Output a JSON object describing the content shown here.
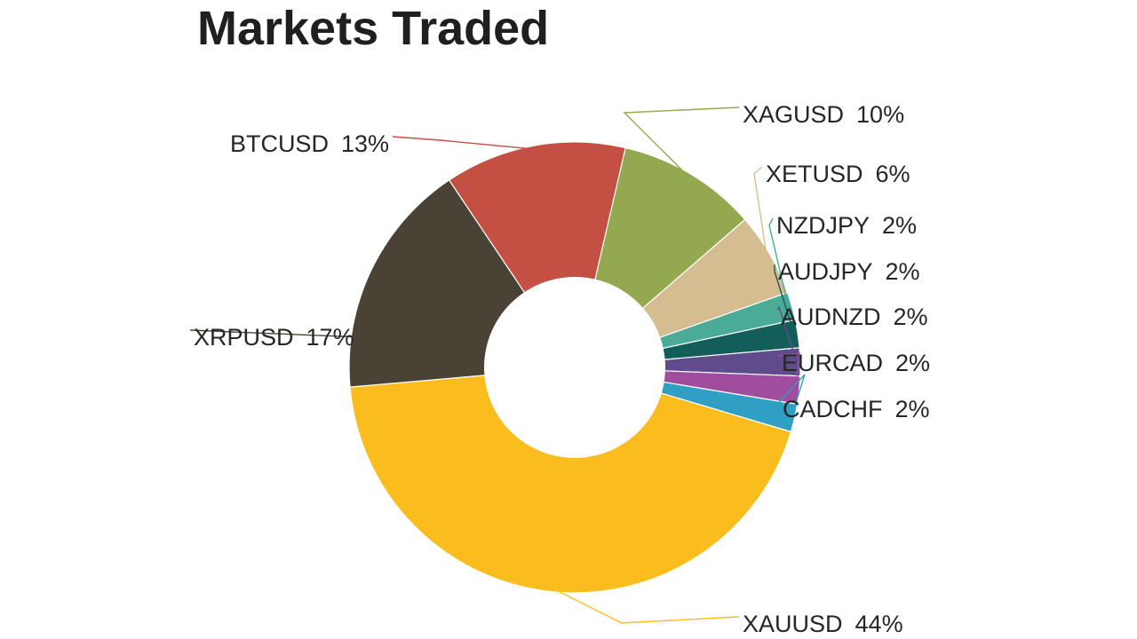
{
  "chart_data": {
    "type": "pie",
    "title": "Markets Traded",
    "donut": true,
    "slices": [
      {
        "label": "XAGUSD",
        "pct_text": "10%",
        "value": 10,
        "color": "#93a84f"
      },
      {
        "label": "XETUSD",
        "pct_text": "6%",
        "value": 6,
        "color": "#d6bc91"
      },
      {
        "label": "NZDJPY",
        "pct_text": "2%",
        "value": 2,
        "color": "#4aab97"
      },
      {
        "label": "AUDJPY",
        "pct_text": "2%",
        "value": 2,
        "color": "#135e5b"
      },
      {
        "label": "AUDNZD",
        "pct_text": "2%",
        "value": 2,
        "color": "#5e4c8c"
      },
      {
        "label": "EURCAD",
        "pct_text": "2%",
        "value": 2,
        "color": "#a14d9f"
      },
      {
        "label": "CADCHF",
        "pct_text": "2%",
        "value": 2,
        "color": "#2f9fc4"
      },
      {
        "label": "XAUUSD",
        "pct_text": "44%",
        "value": 44,
        "color": "#fbbd1e"
      },
      {
        "label": "XRPUSD",
        "pct_text": "17%",
        "value": 17,
        "color": "#4a4234"
      },
      {
        "label": "BTCUSD",
        "pct_text": "13%",
        "value": 13,
        "color": "#c44f43"
      }
    ]
  }
}
